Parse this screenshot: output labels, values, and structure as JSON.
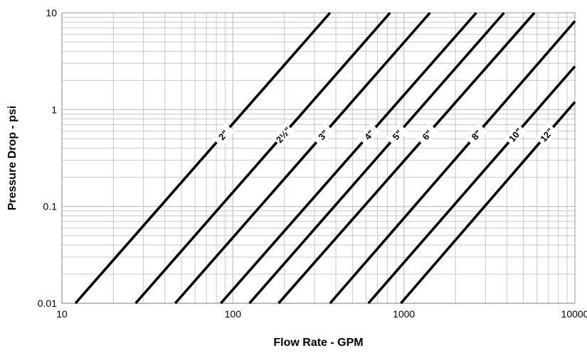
{
  "chart_data": {
    "type": "line",
    "title": "",
    "xlabel": "Flow Rate - GPM",
    "ylabel": "Pressure Drop - psi",
    "xscale": "log",
    "yscale": "log",
    "xlim": [
      10,
      10000
    ],
    "ylim": [
      0.01,
      10
    ],
    "x_ticks": [
      "10",
      "100",
      "1000",
      "10000"
    ],
    "y_ticks": [
      "0.01",
      "0.1",
      "1",
      "10"
    ],
    "grid": true,
    "legend": "none",
    "line_color": "#000000",
    "grid_color": "#c8c8c8",
    "series": [
      {
        "name": "2\"",
        "x": [
          12,
          370
        ],
        "y": [
          0.01,
          10
        ]
      },
      {
        "name": "2½\"",
        "x": [
          27,
          830
        ],
        "y": [
          0.01,
          10
        ]
      },
      {
        "name": "3\"",
        "x": [
          46,
          1420
        ],
        "y": [
          0.01,
          10
        ]
      },
      {
        "name": "4\"",
        "x": [
          85,
          2650
        ],
        "y": [
          0.01,
          10
        ]
      },
      {
        "name": "5\"",
        "x": [
          125,
          3850
        ],
        "y": [
          0.01,
          10
        ]
      },
      {
        "name": "6\"",
        "x": [
          185,
          5800
        ],
        "y": [
          0.01,
          10
        ]
      },
      {
        "name": "8\"",
        "x": [
          370,
          10000
        ],
        "y": [
          0.01,
          8.2
        ]
      },
      {
        "name": "10\"",
        "x": [
          620,
          10000
        ],
        "y": [
          0.01,
          2.8
        ]
      },
      {
        "name": "12\"",
        "x": [
          960,
          10000
        ],
        "y": [
          0.01,
          1.2
        ]
      }
    ]
  }
}
